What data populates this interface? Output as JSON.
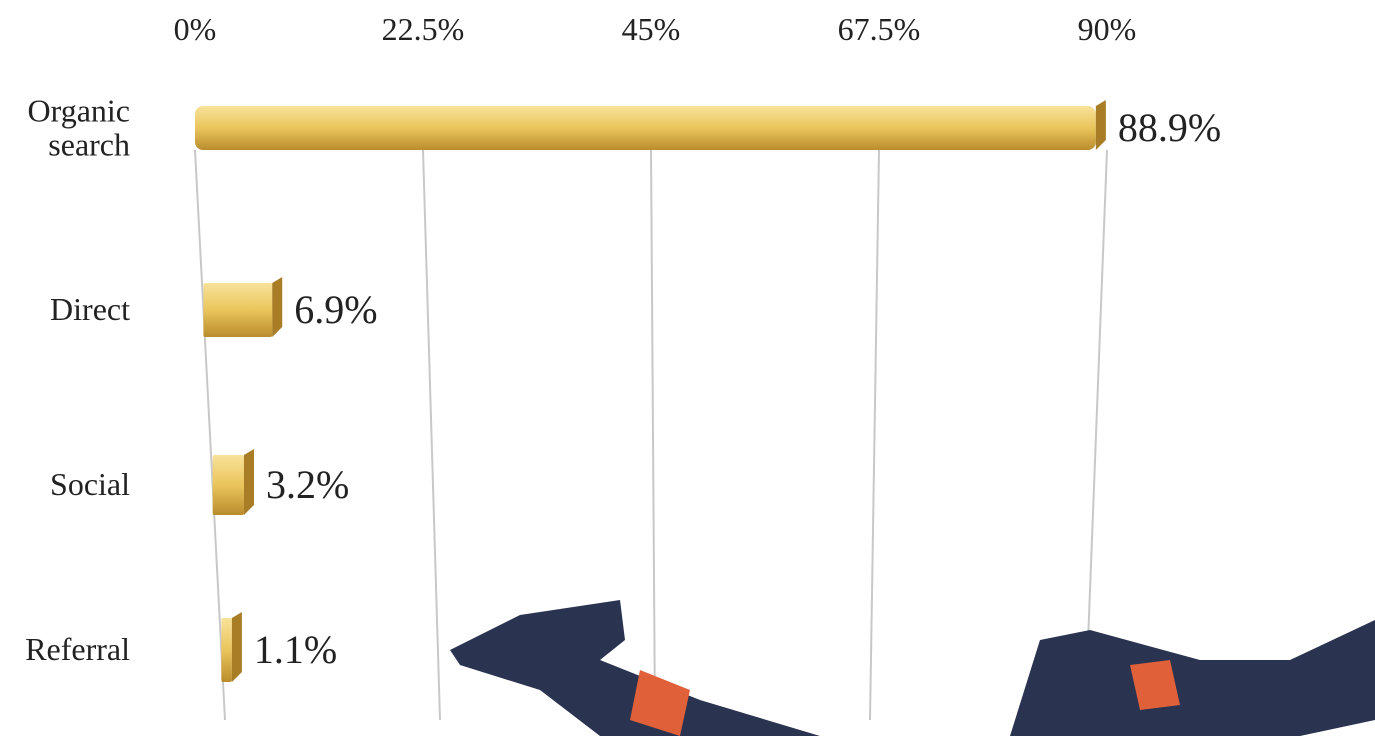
{
  "chart_data": {
    "type": "bar",
    "orientation": "horizontal",
    "categories": [
      "Organic search",
      "Direct",
      "Social",
      "Referral"
    ],
    "values": [
      88.9,
      6.9,
      3.2,
      1.1
    ],
    "value_labels": [
      "88.9%",
      "6.9%",
      "3.2%",
      "1.1%"
    ],
    "color": "#e8c25a",
    "xlim": [
      0,
      90
    ],
    "xticks": [
      {
        "value": 0,
        "label": "0%"
      },
      {
        "value": 22.5,
        "label": "22.5%"
      },
      {
        "value": 45,
        "label": "45%"
      },
      {
        "value": 67.5,
        "label": "67.5%"
      },
      {
        "value": 90,
        "label": "90%"
      }
    ],
    "grid": true
  }
}
